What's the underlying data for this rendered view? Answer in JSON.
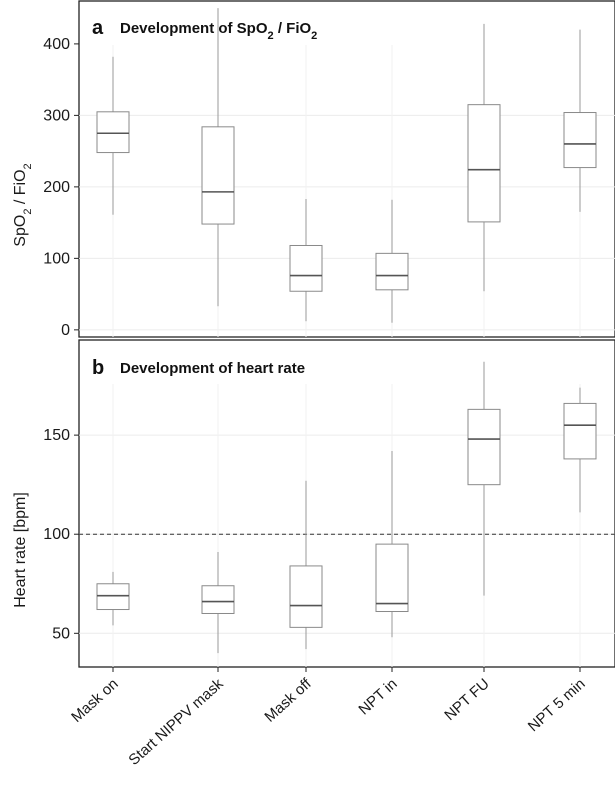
{
  "chart_data": [
    {
      "panel": "a",
      "type": "box",
      "title": "Development of SpO",
      "title_parts": [
        "Development of SpO",
        "2",
        " / FiO",
        "2"
      ],
      "ylabel_parts": [
        "SpO",
        "2",
        " / FiO",
        "2"
      ],
      "xlabel": "",
      "categories": [
        "Mask on",
        "Start NIPPV mask",
        "Mask off",
        "NPT in",
        "NPT FU",
        "NPT 5 min"
      ],
      "ylim": [
        -10,
        460
      ],
      "yticks": [
        0,
        100,
        200,
        300,
        400
      ],
      "grid": true,
      "boxes": [
        {
          "category": "Mask on",
          "min": 161,
          "q1": 248,
          "median": 275,
          "q3": 305,
          "max": 382
        },
        {
          "category": "Start NIPPV mask",
          "min": 33,
          "q1": 148,
          "median": 193,
          "q3": 284,
          "max": 450
        },
        {
          "category": "Mask off",
          "min": 12,
          "q1": 54,
          "median": 76,
          "q3": 118,
          "max": 183
        },
        {
          "category": "NPT in",
          "min": 10,
          "q1": 56,
          "median": 76,
          "q3": 107,
          "max": 182
        },
        {
          "category": "NPT FU",
          "min": 54,
          "q1": 151,
          "median": 224,
          "q3": 315,
          "max": 428
        },
        {
          "category": "NPT 5 min",
          "min": 165,
          "q1": 227,
          "median": 260,
          "q3": 304,
          "max": 420
        }
      ]
    },
    {
      "panel": "b",
      "type": "box",
      "title": "Development of heart rate",
      "xlabel": "",
      "ylabel": "Heart rate [bpm]",
      "categories": [
        "Mask on",
        "Start NIPPV mask",
        "Mask off",
        "NPT in",
        "NPT FU",
        "NPT 5 min"
      ],
      "ylim": [
        33,
        198
      ],
      "yticks": [
        50,
        100,
        150
      ],
      "grid": true,
      "reference_line": {
        "y": 100,
        "style": "dashed"
      },
      "boxes": [
        {
          "category": "Mask on",
          "min": 54,
          "q1": 62,
          "median": 69,
          "q3": 75,
          "max": 81
        },
        {
          "category": "Start NIPPV mask",
          "min": 40,
          "q1": 60,
          "median": 66,
          "q3": 74,
          "max": 91
        },
        {
          "category": "Mask off",
          "min": 42,
          "q1": 53,
          "median": 64,
          "q3": 84,
          "max": 127
        },
        {
          "category": "NPT in",
          "min": 48,
          "q1": 61,
          "median": 65,
          "q3": 95,
          "max": 142
        },
        {
          "category": "NPT FU",
          "min": 69,
          "q1": 125,
          "median": 148,
          "q3": 163,
          "max": 187
        },
        {
          "category": "NPT 5 min",
          "min": 111,
          "q1": 138,
          "median": 155,
          "q3": 166,
          "max": 174
        }
      ]
    }
  ]
}
